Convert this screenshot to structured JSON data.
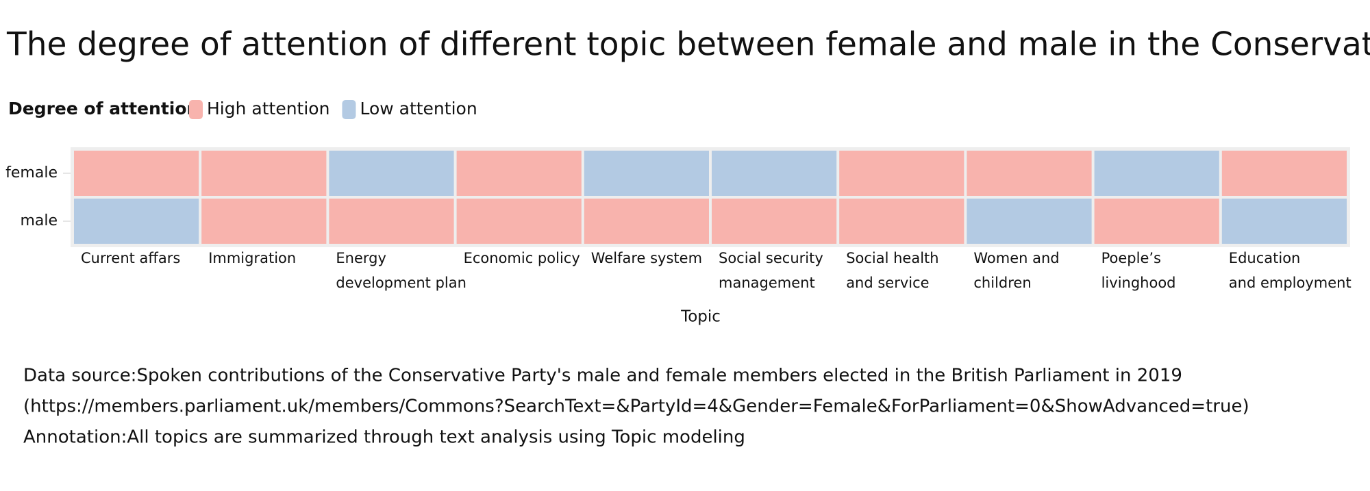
{
  "chart_data": {
    "type": "heatmap",
    "title": "The degree of attention of different topic between female and male in the Conservative Party",
    "legend_title": "Degree of attention",
    "levels": [
      {
        "name": "High attention",
        "color": "#f8b3ad"
      },
      {
        "name": "Low attention",
        "color": "#b3cae3"
      }
    ],
    "x_label": "Topic",
    "categories": [
      [
        "Current affars"
      ],
      [
        "Immigration"
      ],
      [
        "Energy",
        "development plan"
      ],
      [
        "Economic policy"
      ],
      [
        "Welfare system"
      ],
      [
        "Social security",
        "management"
      ],
      [
        "Social health",
        "and service"
      ],
      [
        "Women and",
        "children"
      ],
      [
        "Poeple’s",
        "livinghood"
      ],
      [
        "Education",
        "and employment"
      ]
    ],
    "series": [
      {
        "name": "female",
        "values": [
          "High attention",
          "High attention",
          "Low attention",
          "High attention",
          "Low attention",
          "Low attention",
          "High attention",
          "High attention",
          "Low attention",
          "High attention"
        ]
      },
      {
        "name": "male",
        "values": [
          "Low attention",
          "High attention",
          "High attention",
          "High attention",
          "High attention",
          "High attention",
          "High attention",
          "Low attention",
          "High attention",
          "Low attention"
        ]
      }
    ],
    "notes": [
      "Data source:Spoken contributions of the Conservative Party's male and female members elected in the British Parliament in 2019",
      "(https://members.parliament.uk/members/Commons?SearchText=&PartyId=4&Gender=Female&ForParliament=0&ShowAdvanced=true)",
      "Annotation:All topics are summarized through text analysis using Topic modeling"
    ]
  }
}
